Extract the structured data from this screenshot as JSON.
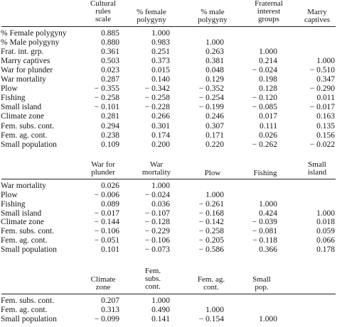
{
  "panels": [
    {
      "headers": [
        "Cultural\nrules\nscale",
        "% female\npolygyny",
        "% male\npolygyny",
        "Fraternal\ninterest\ngroups",
        "Marry\ncaptives"
      ],
      "rows": [
        {
          "label": "% Female polygyny",
          "values": [
            "0.885",
            "1.000",
            "",
            "",
            ""
          ]
        },
        {
          "label": "% Male polygyny",
          "values": [
            "0.880",
            "0.983",
            "1.000",
            "",
            ""
          ]
        },
        {
          "label": "Frat. int. grp.",
          "values": [
            "0.361",
            "0.251",
            "0.263",
            "1.000",
            ""
          ]
        },
        {
          "label": "Marry captives",
          "values": [
            "0.503",
            "0.373",
            "0.381",
            "0.214",
            "1.000"
          ]
        },
        {
          "label": "War for plunder",
          "values": [
            "0.023",
            "0.015",
            "0.048",
            "− 0.024",
            "− 0.510"
          ]
        },
        {
          "label": "War mortality",
          "values": [
            "0.287",
            "0.140",
            "0.129",
            "0.198",
            "0.347"
          ]
        },
        {
          "label": "Plow",
          "values": [
            "− 0.355",
            "− 0.342",
            "− 0.352",
            "0.128",
            "− 0.290"
          ]
        },
        {
          "label": "Fishing",
          "values": [
            "− 0.258",
            "− 0.258",
            "− 0.254",
            "− 0.120",
            "0.011"
          ]
        },
        {
          "label": "Small island",
          "values": [
            "− 0.101",
            "− 0.228",
            "− 0.199",
            "− 0.085",
            "− 0.017"
          ]
        },
        {
          "label": "Climate zone",
          "values": [
            "0.281",
            "0.266",
            "0.246",
            "0.017",
            "0.163"
          ]
        },
        {
          "label": "Fem. subs. cont.",
          "values": [
            "0.294",
            "0.301",
            "0.307",
            "0.111",
            "0.135"
          ]
        },
        {
          "label": "Fem. ag. cont.",
          "values": [
            "0.238",
            "0.174",
            "0.171",
            "0.026",
            "0.156"
          ]
        },
        {
          "label": "Small population",
          "values": [
            "0.109",
            "0.200",
            "0.220",
            "− 0.262",
            "− 0.022"
          ]
        }
      ]
    },
    {
      "headers": [
        "War for\nplunder",
        "War\nmortality",
        "Plow",
        "Fishing",
        "Small\nisland"
      ],
      "rows": [
        {
          "label": "War mortality",
          "values": [
            "0.026",
            "1.000",
            "",
            "",
            ""
          ]
        },
        {
          "label": "Plow",
          "values": [
            "− 0.006",
            "− 0.024",
            "1.000",
            "",
            ""
          ]
        },
        {
          "label": "Fishing",
          "values": [
            "0.089",
            "0.036",
            "− 0.261",
            "1.000",
            ""
          ]
        },
        {
          "label": "Small island",
          "values": [
            "− 0.017",
            "− 0.107",
            "− 0.168",
            "0.424",
            "1.000"
          ]
        },
        {
          "label": "Climate zone",
          "values": [
            "− 0.144",
            "− 0.128",
            "− 0.142",
            "− 0.039",
            "0.018"
          ]
        },
        {
          "label": "Fem. subs. cont.",
          "values": [
            "− 0.106",
            "− 0.229",
            "− 0.258",
            "− 0.081",
            "0.059"
          ]
        },
        {
          "label": "Fem. ag. cont.",
          "values": [
            "− 0.051",
            "− 0.106",
            "− 0.205",
            "− 0.118",
            "0.066"
          ]
        },
        {
          "label": "Small population",
          "values": [
            "0.101",
            "− 0.073",
            "− 0.586",
            "0.366",
            "0.178"
          ]
        }
      ]
    },
    {
      "headers": [
        "Climate\nzone",
        "Fem.\nsubs.\ncont.",
        "Fem. ag.\ncont.",
        "Small\npop."
      ],
      "rows": [
        {
          "label": "Fem. subs. cont.",
          "values": [
            "0.207",
            "1.000",
            "",
            ""
          ]
        },
        {
          "label": "Fem. ag. cont.",
          "values": [
            "0.313",
            "0.490",
            "1.000",
            ""
          ]
        },
        {
          "label": "Small population",
          "values": [
            "− 0.099",
            "0.141",
            "− 0.154",
            "1.000"
          ]
        }
      ]
    }
  ]
}
